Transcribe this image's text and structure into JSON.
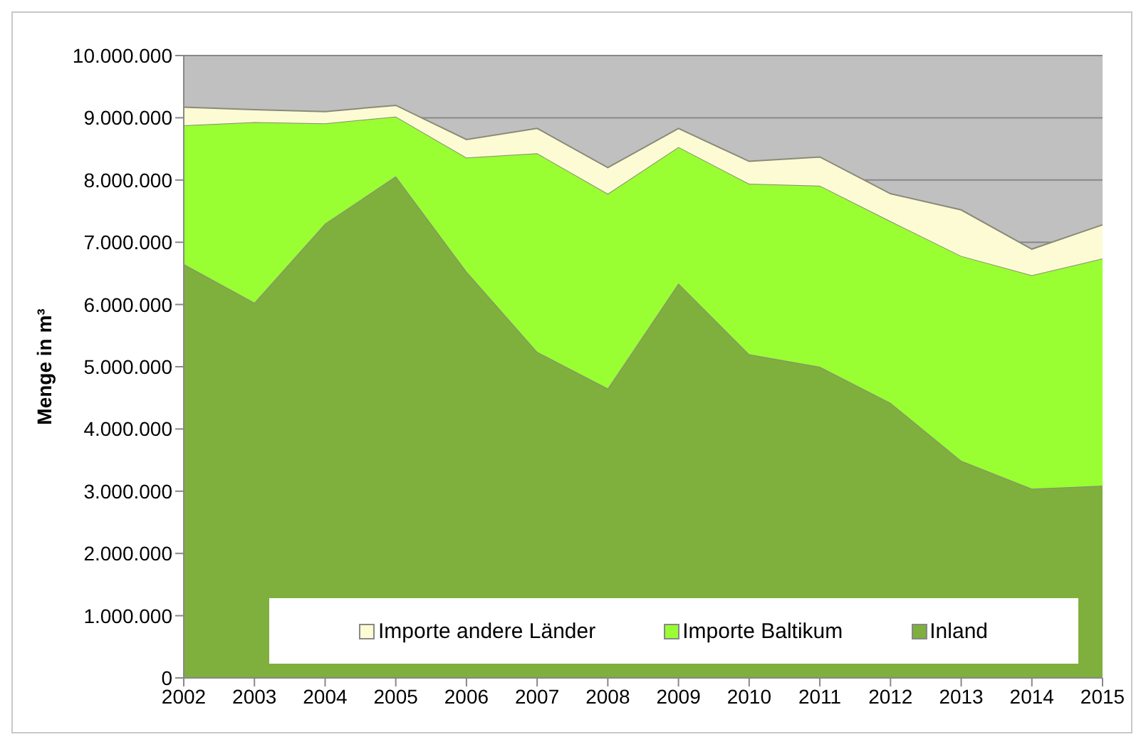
{
  "chart_data": {
    "type": "area",
    "stacked": true,
    "ylabel": "Menge in m³",
    "x": [
      2002,
      2003,
      2004,
      2005,
      2006,
      2007,
      2008,
      2009,
      2010,
      2011,
      2012,
      2013,
      2014,
      2015
    ],
    "series": [
      {
        "name": "Inland",
        "color": "#7faf3d",
        "values": [
          6650000,
          6030000,
          7300000,
          8060000,
          6530000,
          5240000,
          4650000,
          6340000,
          5200000,
          5000000,
          4420000,
          3490000,
          3040000,
          3090000
        ]
      },
      {
        "name": "Importe Baltikum",
        "color": "#99ff33",
        "values": [
          2230000,
          2900000,
          1610000,
          960000,
          1830000,
          3190000,
          3130000,
          2190000,
          2740000,
          2910000,
          2920000,
          3290000,
          3430000,
          3650000
        ]
      },
      {
        "name": "Importe andere Länder",
        "color": "#fdfbd4",
        "values": [
          290000,
          200000,
          190000,
          180000,
          290000,
          400000,
          420000,
          300000,
          360000,
          460000,
          440000,
          740000,
          420000,
          540000
        ]
      }
    ],
    "xlim": [
      2002,
      2015
    ],
    "xticks": [
      2002,
      2003,
      2004,
      2005,
      2006,
      2007,
      2008,
      2009,
      2010,
      2011,
      2012,
      2013,
      2014,
      2015
    ],
    "ylim": [
      0,
      10000000
    ],
    "yticks": [
      {
        "value": 0,
        "label": "0"
      },
      {
        "value": 1000000,
        "label": "1.000.000"
      },
      {
        "value": 2000000,
        "label": "2.000.000"
      },
      {
        "value": 3000000,
        "label": "3.000.000"
      },
      {
        "value": 4000000,
        "label": "4.000.000"
      },
      {
        "value": 5000000,
        "label": "5.000.000"
      },
      {
        "value": 6000000,
        "label": "6.000.000"
      },
      {
        "value": 7000000,
        "label": "7.000.000"
      },
      {
        "value": 8000000,
        "label": "8.000.000"
      },
      {
        "value": 9000000,
        "label": "9.000.000"
      },
      {
        "value": 10000000,
        "label": "10.000.000"
      }
    ],
    "grid": "y",
    "legend": "bottom"
  }
}
